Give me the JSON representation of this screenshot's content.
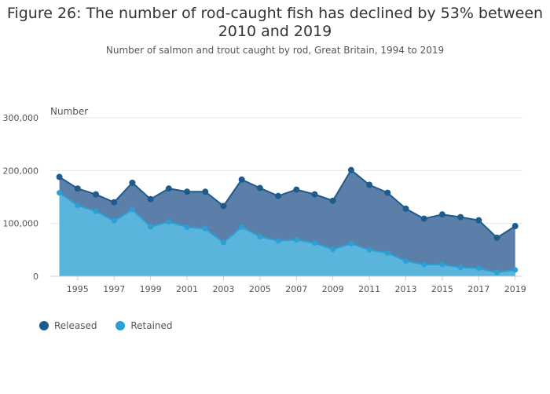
{
  "title": "Figure 26: The number of rod-caught fish has declined by 53% between 2010 and 2019",
  "subtitle": "Number of salmon and trout caught by rod, Great Britain, 1994 to 2019",
  "colors": {
    "released_fill": "#5b7fa8",
    "released_line": "#1f5a8c",
    "retained_fill": "#5ab4dc",
    "retained_line": "#2aa0d4",
    "grid": "#e6e6e6"
  },
  "chart_data": {
    "type": "area",
    "title": "Figure 26: The number of rod-caught fish has declined by 53% between 2010 and 2019",
    "ylabel": "Number",
    "xlabel": "",
    "x": [
      1994,
      1995,
      1996,
      1997,
      1998,
      1999,
      2000,
      2001,
      2002,
      2003,
      2004,
      2005,
      2006,
      2007,
      2008,
      2009,
      2010,
      2011,
      2012,
      2013,
      2014,
      2015,
      2016,
      2017,
      2018,
      2019
    ],
    "xlim": [
      1993.5,
      2019.4
    ],
    "ylim": [
      0,
      300000
    ],
    "yticks": [
      0,
      100000,
      200000,
      300000
    ],
    "ytick_labels": [
      "0",
      "100,000",
      "200,000",
      "300,000"
    ],
    "xticks": [
      1995,
      1997,
      1999,
      2001,
      2003,
      2005,
      2007,
      2009,
      2011,
      2013,
      2015,
      2017,
      2019
    ],
    "xtick_labels": [
      "1995",
      "1997",
      "1999",
      "2001",
      "2003",
      "2005",
      "2007",
      "2009",
      "2011",
      "2013",
      "2015",
      "2017",
      "2019"
    ],
    "legend_position": "bottom-left",
    "series": [
      {
        "name": "Released",
        "values": [
          188000,
          166000,
          155000,
          140000,
          177000,
          146000,
          166000,
          160000,
          160000,
          133000,
          183000,
          167000,
          152000,
          164000,
          155000,
          143000,
          201000,
          173000,
          158000,
          128000,
          109000,
          117000,
          112000,
          106000,
          73000,
          95000
        ]
      },
      {
        "name": "Retained",
        "values": [
          158000,
          134000,
          123000,
          105000,
          126000,
          94000,
          103000,
          93000,
          90000,
          64000,
          93000,
          75000,
          67000,
          69000,
          63000,
          51000,
          62000,
          50000,
          44000,
          29000,
          22000,
          22000,
          17000,
          15000,
          7000,
          12000
        ]
      }
    ]
  }
}
